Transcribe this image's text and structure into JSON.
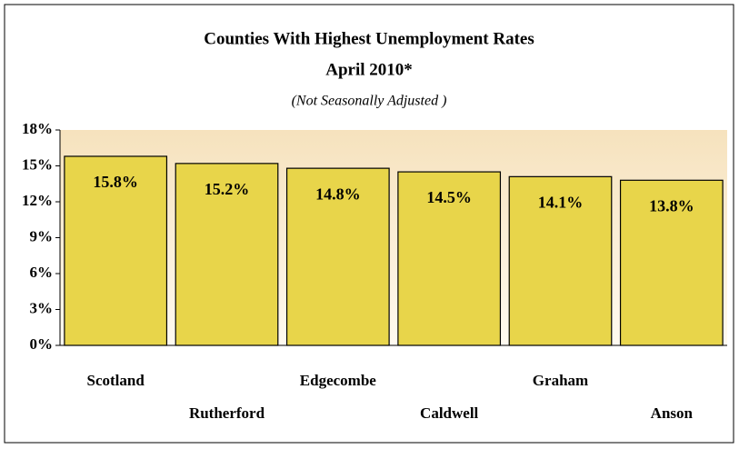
{
  "chart_data": {
    "type": "bar",
    "title": "Counties With Highest Unemployment Rates",
    "subtitle": "April 2010*",
    "note": "(Not Seasonally Adjusted )",
    "categories": [
      "Scotland",
      "Rutherford",
      "Edgecombe",
      "Caldwell",
      "Graham",
      "Anson"
    ],
    "values": [
      15.8,
      15.2,
      14.8,
      14.5,
      14.1,
      13.8
    ],
    "value_labels": [
      "15.8%",
      "15.2%",
      "14.8%",
      "14.5%",
      "14.1%",
      "13.8%"
    ],
    "color": "#e8d54a",
    "ylim": [
      0,
      18
    ],
    "yticks": [
      {
        "value": 0,
        "label": "0%"
      },
      {
        "value": 3,
        "label": "3%"
      },
      {
        "value": 6,
        "label": "6%"
      },
      {
        "value": 9,
        "label": "9%"
      },
      {
        "value": 12,
        "label": "12%"
      },
      {
        "value": 15,
        "label": "15%"
      },
      {
        "value": 18,
        "label": "18%"
      }
    ],
    "grid": false
  }
}
